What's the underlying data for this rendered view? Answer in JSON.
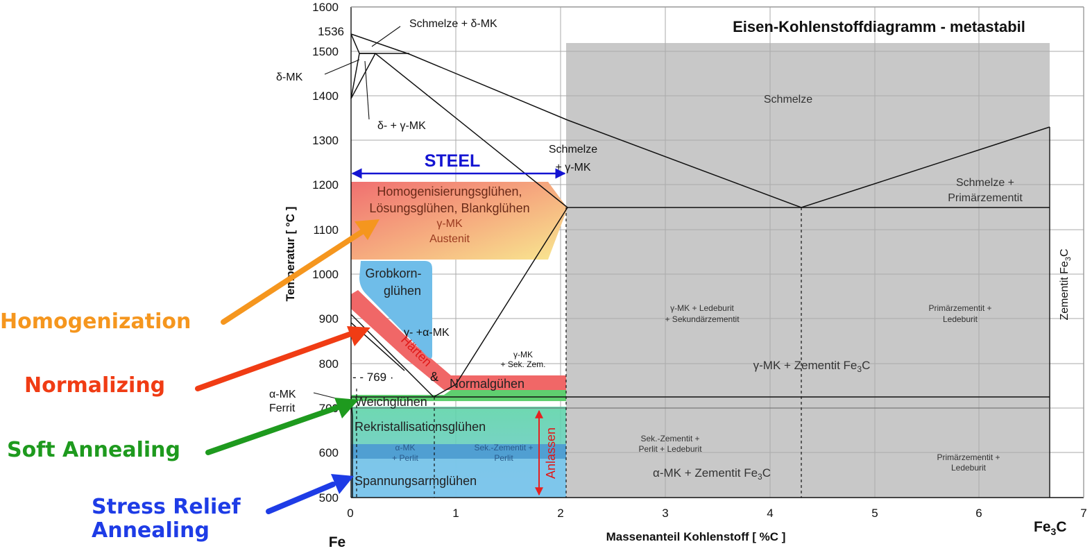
{
  "title": "Eisen-Kohlenstoffdiagramm - metastabil",
  "axes": {
    "x_label": "Massenanteil Kohlenstoff [ %C ]",
    "y_label": "Temperatur [ °C ]",
    "x_ticks": [
      "0",
      "1",
      "2",
      "3",
      "4",
      "5",
      "6",
      "7"
    ],
    "y_ticks": [
      "500",
      "600",
      "700",
      "800",
      "900",
      "1000",
      "1100",
      "1200",
      "1300",
      "1400",
      "1500",
      "1600"
    ],
    "y_extra_tick": "1536",
    "x_left_end": "Fe",
    "x_right_end_base": "Fe",
    "x_right_end_sub": "3",
    "x_right_end_tail": "C"
  },
  "phase_labels": {
    "schmelze_delta": "Schmelze + δ-MK",
    "delta_mk": "δ-MK",
    "delta_gamma": "δ- + γ-MK",
    "schmelze": "Schmelze",
    "schmelze_gamma_1": "Schmelze",
    "schmelze_gamma_2": "+ γ-MK",
    "schmelze_primaer_1": "Schmelze +",
    "schmelze_primaer_2": "Primärzementit",
    "gamma_ledeburit_1": "γ-MK + Ledeburit",
    "gamma_ledeburit_2": "+ Sekundärzementit",
    "primaer_ledeburit_1": "Primärzementit +",
    "primaer_ledeburit_2": "Ledeburit",
    "gamma_zementit": "γ-MK + Zementit Fe",
    "gamma_zementit_sub": "3",
    "gamma_zementit_tail": "C",
    "gamma_sek_1": "γ-MK",
    "gamma_sek_2": "+ Sek. Zem.",
    "gamma_alpha": "γ- +α-MK",
    "alpha_ferrit_1": "α-MK",
    "alpha_ferrit_2": "Ferrit",
    "a2_line": "- - 769 ·",
    "alpha_perlit_1": "α-MK",
    "alpha_perlit_2": "+ Perlit",
    "sek_perlit_1": "Sek.-Zementit +",
    "sek_perlit_2": "Perlit",
    "sek_perlit_ledeburit_1": "Sek.-Zementit +",
    "sek_perlit_ledeburit_2": "Perlit + Ledeburit",
    "primaer_ledeburit_low_1": "Primärzementit +",
    "primaer_ledeburit_low_2": "Ledeburit",
    "alpha_zementit": "α-MK + Zementit Fe",
    "alpha_zementit_sub": "3",
    "alpha_zementit_tail": "C",
    "zementit_side": "Zementit Fe",
    "zementit_side_sub": "3",
    "zementit_side_tail": "C",
    "austenit_1": "γ-MK",
    "austenit_2": "Austenit"
  },
  "treatments": {
    "homogen_1": "Homogenisierungsglühen,",
    "homogen_2": "Lösungsglühen, Blankglühen",
    "grobkorn_1": "Grobkorn-",
    "grobkorn_2": "glühen",
    "haerten": "Härten",
    "ampersand": "&",
    "normal": "Normalgühen",
    "weich": "Weichglühen",
    "rekristall": "Rekristallisationsglühen",
    "spannung": "Spannungsarmglühen",
    "anlassen": "Anlassen"
  },
  "annotations": {
    "steel": "STEEL",
    "homogenization": "Homogenization",
    "normalizing": "Normalizing",
    "soft_annealing": "Soft Annealing",
    "stress_relief_1": "Stress Relief",
    "stress_relief_2": "Annealing"
  },
  "colors": {
    "homogenization": "#f5961e",
    "normalizing": "#f03c14",
    "soft_annealing": "#1e9a1e",
    "stress_relief": "#1e3ce6",
    "steel": "#1414d2",
    "anlassen": "#e62020",
    "cementite_region": "#c8c8c8"
  }
}
